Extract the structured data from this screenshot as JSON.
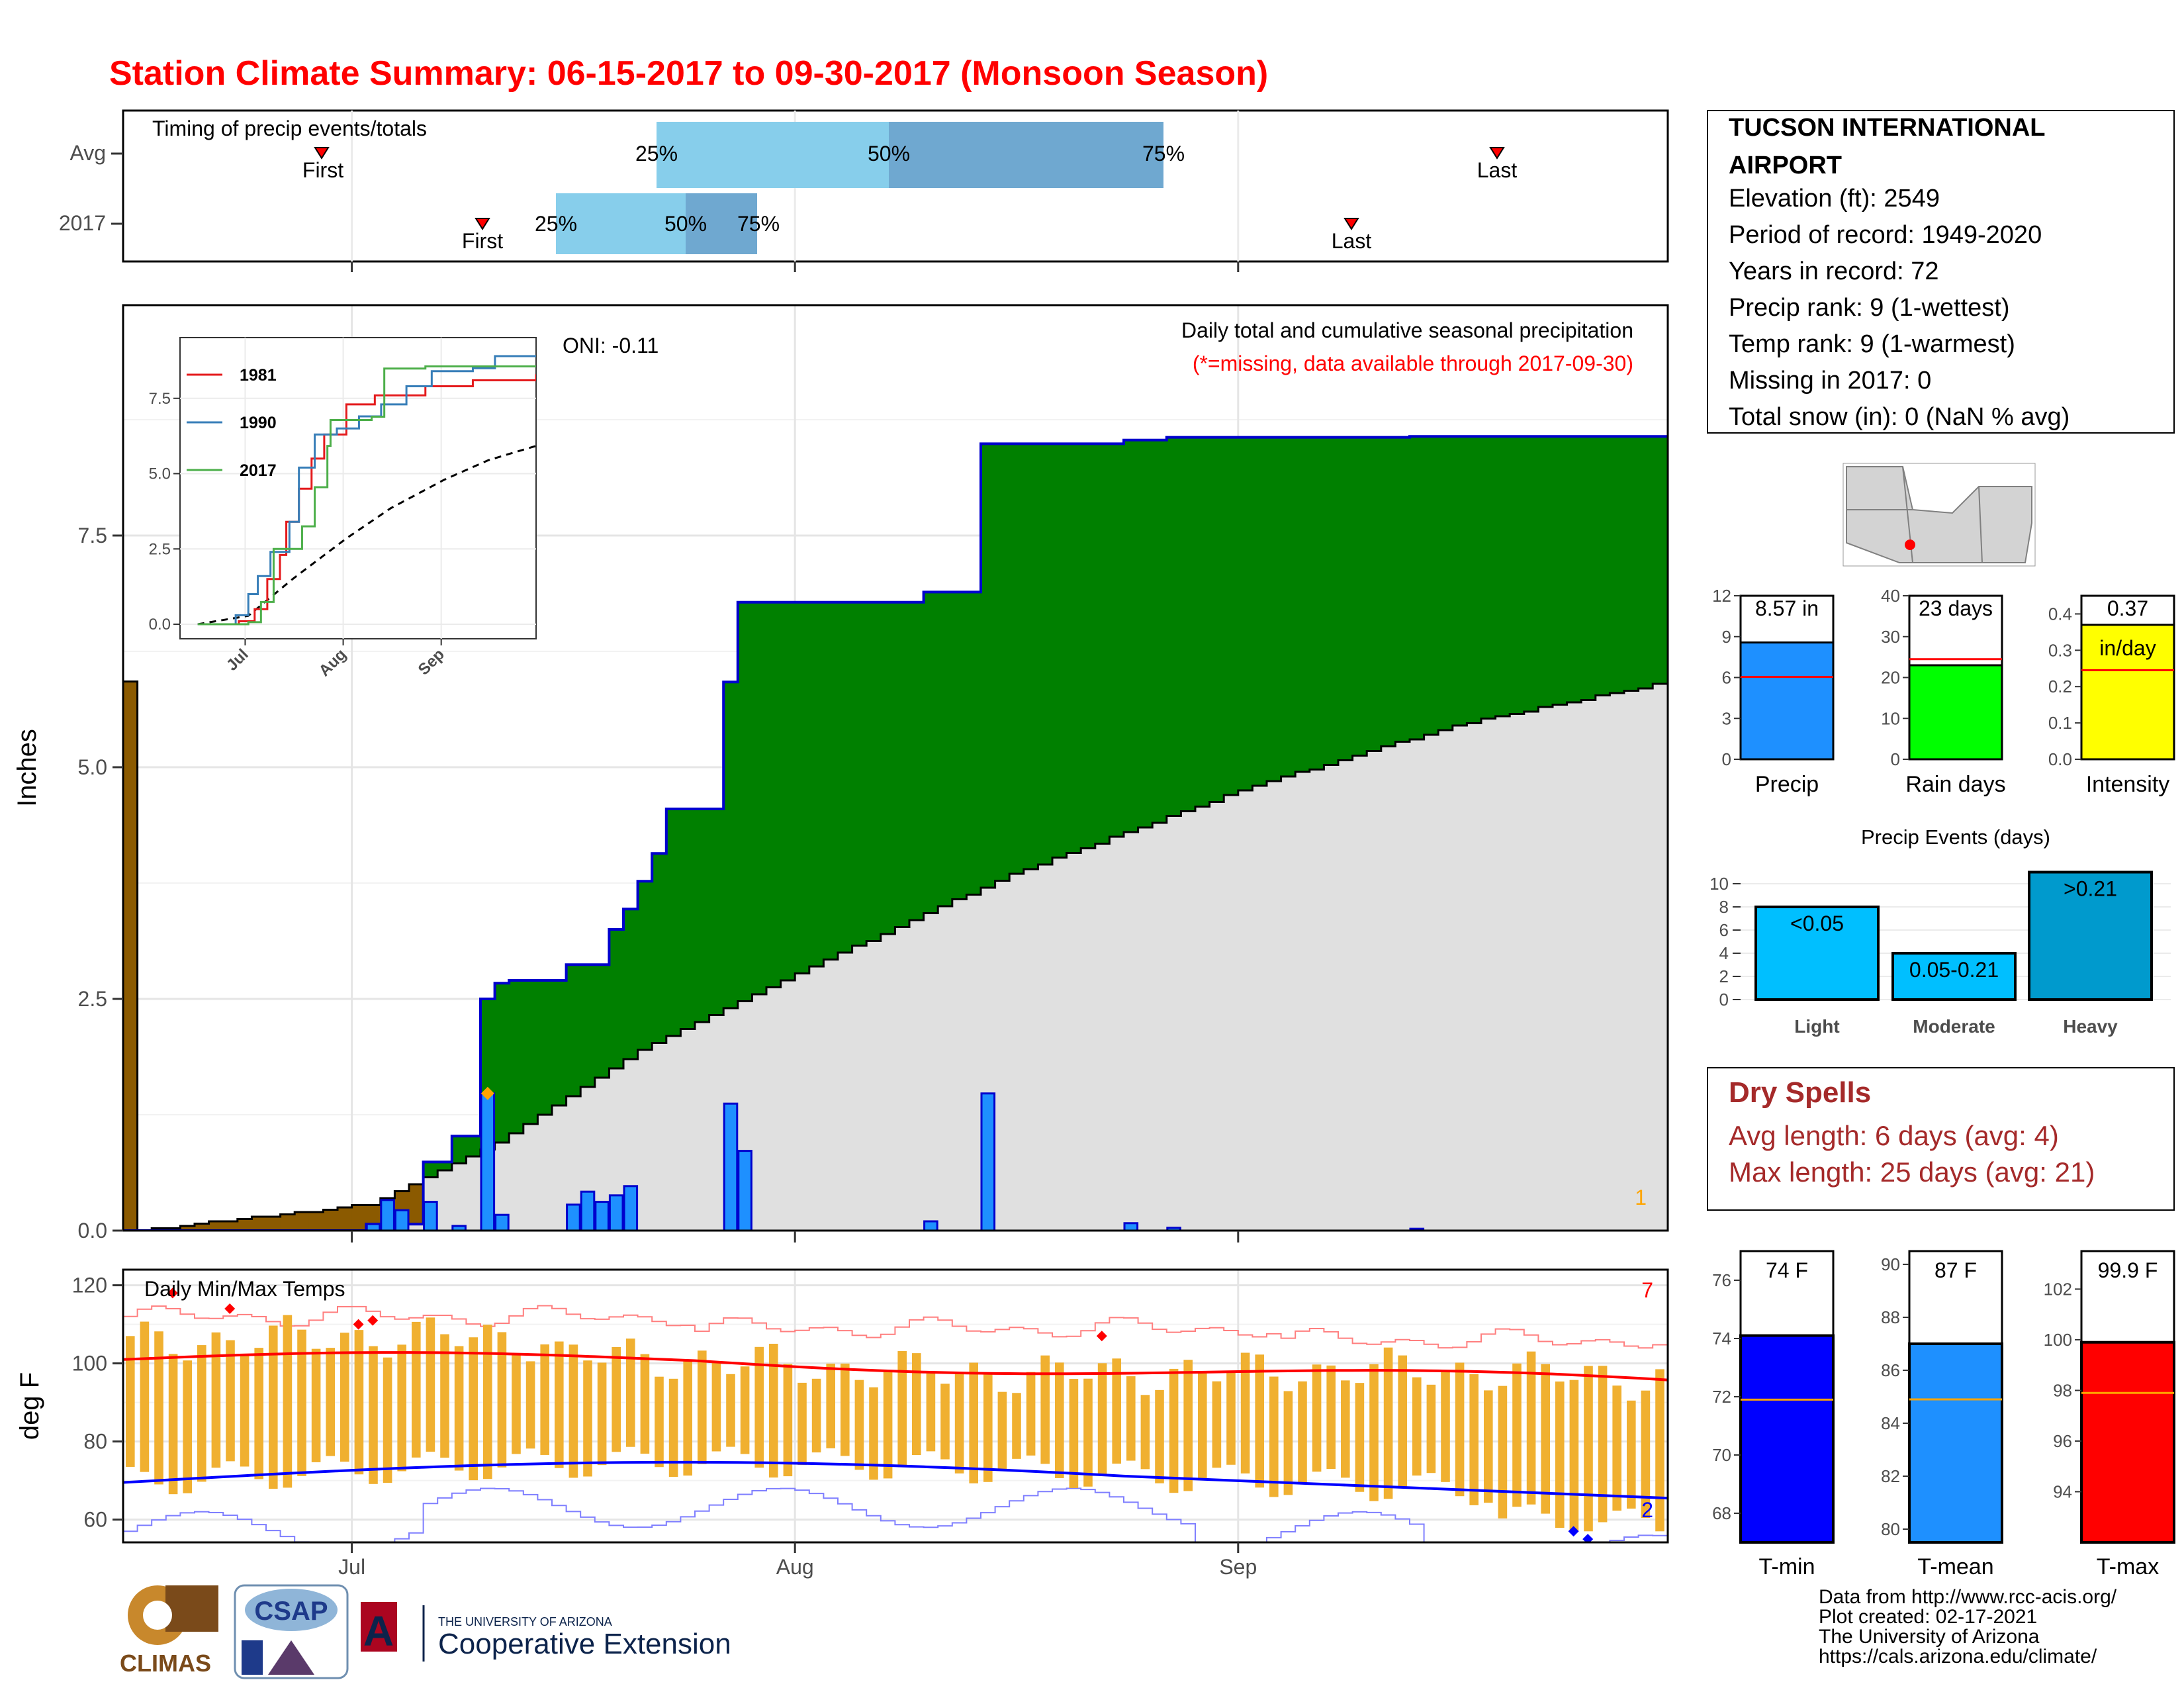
{
  "title": "Station Climate Summary: 06-15-2017 to 09-30-2017 (Monsoon Season)",
  "timing": {
    "label": "Timing of precip events/totals",
    "rows": [
      {
        "name": "Avg",
        "first": "06-20",
        "last": "09-26",
        "p25": "07-14",
        "p50": "08-02",
        "p75": "08-25"
      },
      {
        "name": "2017",
        "first": "07-01",
        "last": "09-14",
        "p25": "07-14",
        "p50": "07-24",
        "p75": "07-30"
      }
    ],
    "first_label": "First",
    "last_label": "Last",
    "p25_label": "25%",
    "p50_label": "50%",
    "p75_label": "75%"
  },
  "main": {
    "ylabel": "Inches",
    "yticks": [
      "0.0",
      "2.5",
      "5.0",
      "7.5"
    ],
    "xticks": [
      "Jul",
      "Aug",
      "Sep"
    ],
    "oni": "ONI: -0.11",
    "legend_title": "Daily total and cumulative seasonal precipitation",
    "missing_note": "(*=missing, data available through 2017-09-30)",
    "corner_count": "1"
  },
  "inset": {
    "yticks": [
      "0.0",
      "2.5",
      "5.0",
      "7.5"
    ],
    "xticks": [
      "Jul",
      "Aug",
      "Sep"
    ],
    "series_names": [
      "1981",
      "1990",
      "2017"
    ],
    "series_colors": [
      "#e41a1c",
      "#377eb8",
      "#4daf4a"
    ]
  },
  "station": {
    "name": "TUCSON INTERNATIONAL",
    "name2": "AIRPORT",
    "lines": [
      "Elevation (ft): 2549",
      "Period of record: 1949-2020",
      "Years in record: 72",
      "Precip rank: 9 (1-wettest)",
      "Temp rank: 9 (1-warmest)",
      "Missing in 2017: 0",
      "Total snow (in): 0 (NaN % avg)"
    ]
  },
  "stats": [
    {
      "label": "Precip",
      "value_text": "8.57 in",
      "value": 8.57,
      "avg": 6.05,
      "ymax": 12,
      "ticks": [
        "0",
        "3",
        "6",
        "9",
        "12"
      ],
      "color": "#1e90ff"
    },
    {
      "label": "Rain days",
      "value_text": "23 days",
      "value": 23,
      "avg": 24.5,
      "ymax": 40,
      "ticks": [
        "0",
        "10",
        "20",
        "30",
        "40"
      ],
      "color": "#00ff00"
    },
    {
      "label": "Intensity",
      "value_text": "0.37",
      "value_text2": "in/day",
      "value": 0.37,
      "avg": 0.245,
      "ymax": 0.45,
      "ticks": [
        "0.0",
        "0.1",
        "0.2",
        "0.3",
        "0.4"
      ],
      "color": "#ffff00"
    }
  ],
  "events": {
    "title": "Precip Events (days)",
    "ticks": [
      "0",
      "2",
      "4",
      "6",
      "8",
      "10"
    ],
    "bars": [
      {
        "label": "Light",
        "bar_text": "<0.05",
        "value": 8,
        "color": "#00bfff"
      },
      {
        "label": "Moderate",
        "bar_text": "0.05-0.21",
        "value": 4,
        "color": "#00bfff"
      },
      {
        "label": "Heavy",
        "bar_text": ">0.21",
        "value": 11,
        "color": "#009acd"
      }
    ]
  },
  "dry_spells": {
    "title": "Dry Spells",
    "avg": "Avg length: 6 days (avg: 4)",
    "max": "Max length: 25 days (avg: 21)"
  },
  "temps": {
    "label": "Daily Min/Max Temps",
    "ylabel": "deg F",
    "yticks": [
      "60",
      "80",
      "100",
      "120"
    ],
    "xticks": [
      "Jul",
      "Aug",
      "Sep"
    ],
    "count_high": "7",
    "count_low": "2"
  },
  "temp_bars": [
    {
      "label": "T-min",
      "value_text": "74 F",
      "value": 74.1,
      "avg": 71.9,
      "ymin": 67,
      "ymax": 77,
      "ticks": [
        "68",
        "70",
        "72",
        "74",
        "76"
      ],
      "color": "#0000ff"
    },
    {
      "label": "T-mean",
      "value_text": "87 F",
      "value": 87.0,
      "avg": 84.9,
      "ymin": 79.5,
      "ymax": 90.5,
      "ticks": [
        "80",
        "82",
        "84",
        "86",
        "88",
        "90"
      ],
      "color": "#1e90ff"
    },
    {
      "label": "T-max",
      "value_text": "99.9 F",
      "value": 99.9,
      "avg": 97.9,
      "ymin": 92,
      "ymax": 103.5,
      "ticks": [
        "94",
        "96",
        "98",
        "100",
        "102"
      ],
      "color": "#ff0000"
    }
  ],
  "footer": {
    "lines": [
      "Data from http://www.rcc-acis.org/",
      "Plot created: 02-17-2021",
      "The University of Arizona",
      "https://cals.arizona.edu/climate/"
    ],
    "logo_climas": "CLIMAS",
    "logo_csap": "CSAP",
    "uofa_small": "THE UNIVERSITY OF ARIZONA",
    "uofa_big": "Cooperative Extension"
  },
  "chart_data": {
    "type": "area",
    "x_range": [
      "2017-06-15",
      "2017-09-30"
    ],
    "ylim": [
      0,
      9.5
    ],
    "ylabel": "Inches",
    "cumulative_2017": [
      {
        "date": "07-01",
        "value": 0.07
      },
      {
        "date": "07-05",
        "value": 0.74
      },
      {
        "date": "07-07",
        "value": 1.02
      },
      {
        "date": "07-09",
        "value": 2.5
      },
      {
        "date": "07-10",
        "value": 2.67
      },
      {
        "date": "07-11",
        "value": 2.7
      },
      {
        "date": "07-15",
        "value": 2.87
      },
      {
        "date": "07-18",
        "value": 3.25
      },
      {
        "date": "07-19",
        "value": 3.47
      },
      {
        "date": "07-20",
        "value": 3.77
      },
      {
        "date": "07-21",
        "value": 4.07
      },
      {
        "date": "07-22",
        "value": 4.55
      },
      {
        "date": "07-26",
        "value": 5.92
      },
      {
        "date": "07-27",
        "value": 6.78
      },
      {
        "date": "08-09",
        "value": 6.89
      },
      {
        "date": "08-13",
        "value": 8.49
      },
      {
        "date": "08-23",
        "value": 8.53
      },
      {
        "date": "08-26",
        "value": 8.56
      },
      {
        "date": "09-12",
        "value": 8.57
      }
    ],
    "avg_cumulative": [
      {
        "date": "06-15",
        "value": 0.0
      },
      {
        "date": "07-01",
        "value": 0.28
      },
      {
        "date": "07-10",
        "value": 0.95
      },
      {
        "date": "07-20",
        "value": 1.95
      },
      {
        "date": "08-01",
        "value": 2.85
      },
      {
        "date": "08-15",
        "value": 3.85
      },
      {
        "date": "09-01",
        "value": 4.8
      },
      {
        "date": "09-15",
        "value": 5.45
      },
      {
        "date": "09-30",
        "value": 5.92
      }
    ],
    "daily_precip": [
      {
        "date": "07-01",
        "value": 0.07
      },
      {
        "date": "07-02",
        "value": 0.33
      },
      {
        "date": "07-03",
        "value": 0.22
      },
      {
        "date": "07-05",
        "value": 0.31
      },
      {
        "date": "07-07",
        "value": 0.05
      },
      {
        "date": "07-09",
        "value": 1.48
      },
      {
        "date": "07-10",
        "value": 0.17
      },
      {
        "date": "07-15",
        "value": 0.28
      },
      {
        "date": "07-16",
        "value": 0.42
      },
      {
        "date": "07-17",
        "value": 0.31
      },
      {
        "date": "07-18",
        "value": 0.38
      },
      {
        "date": "07-19",
        "value": 0.48
      },
      {
        "date": "07-26",
        "value": 1.37
      },
      {
        "date": "07-27",
        "value": 0.86
      },
      {
        "date": "08-09",
        "value": 0.1
      },
      {
        "date": "08-13",
        "value": 1.48
      },
      {
        "date": "08-23",
        "value": 0.08
      },
      {
        "date": "08-26",
        "value": 0.03
      },
      {
        "date": "09-12",
        "value": 0.02
      }
    ],
    "inset_series": [
      {
        "name": "1981",
        "points": [
          {
            "date": "06-15",
            "value": 0
          },
          {
            "date": "06-28",
            "value": 0.1
          },
          {
            "date": "07-03",
            "value": 0.5
          },
          {
            "date": "07-07",
            "value": 1.5
          },
          {
            "date": "07-11",
            "value": 2.3
          },
          {
            "date": "07-13",
            "value": 3.4
          },
          {
            "date": "07-17",
            "value": 4.5
          },
          {
            "date": "07-21",
            "value": 5.5
          },
          {
            "date": "07-25",
            "value": 6.3
          },
          {
            "date": "08-01",
            "value": 7.3
          },
          {
            "date": "08-10",
            "value": 7.6
          },
          {
            "date": "08-20",
            "value": 7.6
          },
          {
            "date": "08-26",
            "value": 7.9
          },
          {
            "date": "09-10",
            "value": 8.1
          },
          {
            "date": "09-30",
            "value": 8.3
          }
        ]
      },
      {
        "name": "1990",
        "points": [
          {
            "date": "06-15",
            "value": 0
          },
          {
            "date": "06-27",
            "value": 0.3
          },
          {
            "date": "07-01",
            "value": 1.0
          },
          {
            "date": "07-04",
            "value": 1.6
          },
          {
            "date": "07-08",
            "value": 2.4
          },
          {
            "date": "07-14",
            "value": 3.4
          },
          {
            "date": "07-17",
            "value": 5.2
          },
          {
            "date": "07-22",
            "value": 6.3
          },
          {
            "date": "07-29",
            "value": 6.5
          },
          {
            "date": "08-05",
            "value": 6.9
          },
          {
            "date": "08-12",
            "value": 7.3
          },
          {
            "date": "08-20",
            "value": 7.9
          },
          {
            "date": "08-28",
            "value": 8.4
          },
          {
            "date": "09-10",
            "value": 8.5
          },
          {
            "date": "09-17",
            "value": 8.9
          },
          {
            "date": "09-30",
            "value": 8.9
          }
        ]
      },
      {
        "name": "2017",
        "points": [
          {
            "date": "06-15",
            "value": 0
          },
          {
            "date": "07-01",
            "value": 0.07
          },
          {
            "date": "07-05",
            "value": 0.74
          },
          {
            "date": "07-09",
            "value": 2.5
          },
          {
            "date": "07-18",
            "value": 3.25
          },
          {
            "date": "07-22",
            "value": 4.55
          },
          {
            "date": "07-26",
            "value": 5.92
          },
          {
            "date": "07-27",
            "value": 6.78
          },
          {
            "date": "08-09",
            "value": 6.89
          },
          {
            "date": "08-13",
            "value": 8.49
          },
          {
            "date": "08-26",
            "value": 8.56
          },
          {
            "date": "09-30",
            "value": 8.57
          }
        ]
      }
    ],
    "inset_avg": [
      {
        "date": "06-15",
        "value": 0
      },
      {
        "date": "07-01",
        "value": 0.28
      },
      {
        "date": "07-15",
        "value": 1.5
      },
      {
        "date": "08-01",
        "value": 2.85
      },
      {
        "date": "08-15",
        "value": 3.85
      },
      {
        "date": "09-01",
        "value": 4.8
      },
      {
        "date": "09-15",
        "value": 5.45
      },
      {
        "date": "09-30",
        "value": 5.92
      }
    ]
  }
}
